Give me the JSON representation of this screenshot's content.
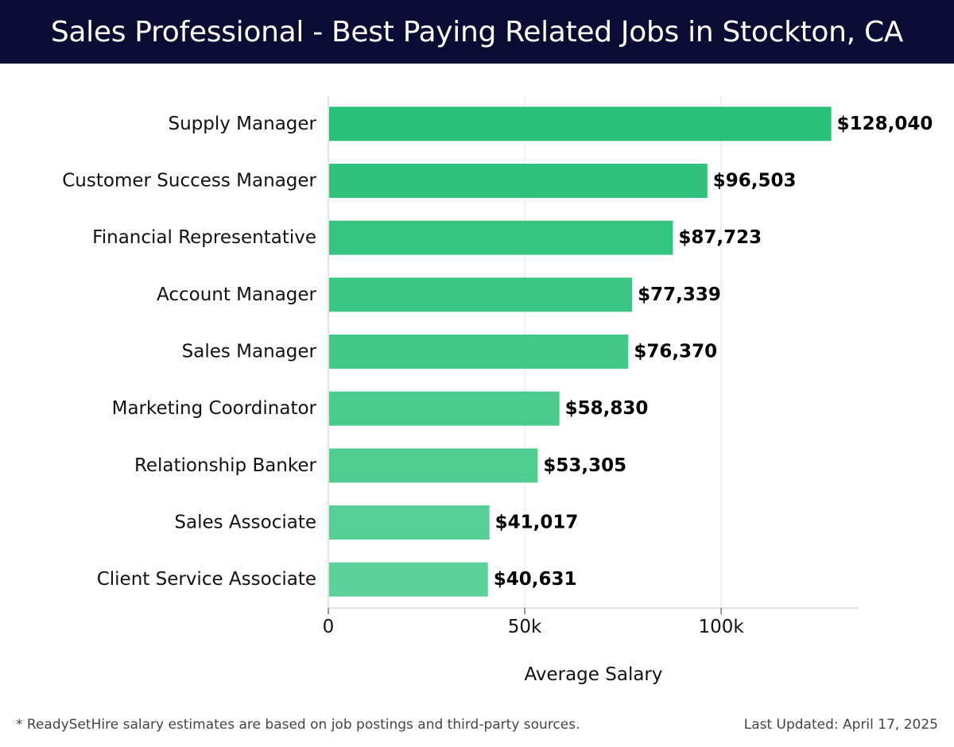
{
  "header": {
    "title": "Sales Professional - Best Paying Related Jobs in Stockton, CA"
  },
  "footer": {
    "note": "* ReadySetHire salary estimates are based on job postings and third-party sources.",
    "updated": "Last Updated: April 17, 2025"
  },
  "colors": {
    "header_bg": "#0b0c33",
    "bar_top": "#27c077",
    "bar_bottom": "#5dd19a"
  },
  "chart_data": {
    "type": "bar",
    "orientation": "horizontal",
    "categories": [
      "Supply Manager",
      "Customer Success Manager",
      "Financial Representative",
      "Account Manager",
      "Sales Manager",
      "Marketing Coordinator",
      "Relationship Banker",
      "Sales Associate",
      "Client Service Associate"
    ],
    "values": [
      128040,
      96503,
      87723,
      77339,
      76370,
      58830,
      53305,
      41017,
      40631
    ],
    "value_labels": [
      "$128,040",
      "$96,503",
      "$87,723",
      "$77,339",
      "$76,370",
      "$58,830",
      "$53,305",
      "$41,017",
      "$40,631"
    ],
    "xlabel": "Average Salary",
    "ylabel": "",
    "xlim": [
      0,
      135000
    ],
    "xticks": [
      0,
      50000,
      100000
    ],
    "xtick_labels": [
      "0",
      "50k",
      "100k"
    ],
    "grid": "vertical"
  }
}
